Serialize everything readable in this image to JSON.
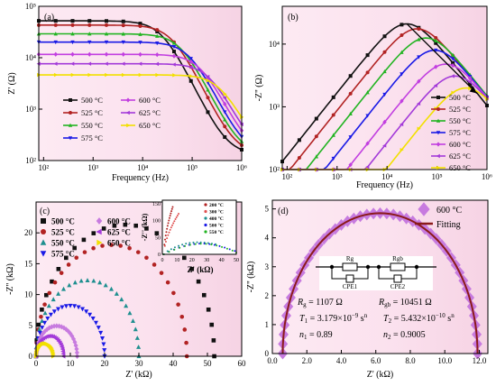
{
  "colors": {
    "bg_pink": "#fbe4ef",
    "s500": "#111111",
    "s525": "#b22323",
    "s550": "#22b422",
    "s575": "#1a1ae6",
    "s600": "#c23fe0",
    "s625": "#a33ad9",
    "s650": "#f2e000",
    "scatter550": "#1e8f8f",
    "scatter600": "#c77bdf",
    "fit": "#8b1a1a"
  },
  "chart_data": [
    {
      "type": "line",
      "panel_label": "(a)",
      "xlabel": "Frequency (Hz)",
      "ylabel": "Z' (Ω)",
      "x_scale": "log",
      "y_scale": "log",
      "xlim": [
        80,
        1000000
      ],
      "ylim": [
        100,
        100000
      ],
      "x_ticks": [
        100,
        1000,
        10000,
        100000,
        1000000
      ],
      "x_tick_labels": [
        "10²",
        "10³",
        "10⁴",
        "10⁵",
        "10⁶"
      ],
      "y_ticks": [
        100,
        1000,
        10000,
        100000
      ],
      "y_tick_labels": [
        "10²",
        "10³",
        "10⁴",
        "10⁵"
      ],
      "legend": [
        "500 °C",
        "525 °C",
        "550 °C",
        "575 °C",
        "600 °C",
        "625 °C",
        "650 °C"
      ],
      "series": [
        {
          "name": "500 °C",
          "plateau": 52000,
          "fc": 25000,
          "color_key": "s500"
        },
        {
          "name": "525 °C",
          "plateau": 43000,
          "fc": 40000,
          "color_key": "s525"
        },
        {
          "name": "550 °C",
          "plateau": 29000,
          "fc": 60000,
          "color_key": "s550"
        },
        {
          "name": "575 °C",
          "plateau": 20000,
          "fc": 90000,
          "color_key": "s575"
        },
        {
          "name": "600 °C",
          "plateau": 11500,
          "fc": 150000,
          "color_key": "s600"
        },
        {
          "name": "625 °C",
          "plateau": 7500,
          "fc": 230000,
          "color_key": "s625"
        },
        {
          "name": "650 °C",
          "plateau": 4500,
          "fc": 380000,
          "color_key": "s650"
        }
      ]
    },
    {
      "type": "line",
      "panel_label": "(b)",
      "xlabel": "Frequency (Hz)",
      "ylabel": "-Z'' (Ω)",
      "x_scale": "log",
      "y_scale": "log",
      "xlim": [
        80,
        1000000
      ],
      "ylim": [
        100,
        40000
      ],
      "x_ticks": [
        100,
        1000,
        10000,
        100000,
        1000000
      ],
      "x_tick_labels": [
        "10²",
        "10³",
        "10⁴",
        "10⁵",
        "10⁶"
      ],
      "y_ticks": [
        100,
        1000,
        10000
      ],
      "y_tick_labels": [
        "10²",
        "10³",
        "10⁴"
      ],
      "legend": [
        "500 °C",
        "525 °C",
        "550 °C",
        "575 °C",
        "600 °C",
        "625 °C",
        "650 °C"
      ],
      "series": [
        {
          "name": "500 °C",
          "peak": 21000,
          "fpeak": 25000
        },
        {
          "name": "525 °C",
          "peak": 17500,
          "fpeak": 40000
        },
        {
          "name": "550 °C",
          "peak": 12500,
          "fpeak": 60000
        },
        {
          "name": "575 °C",
          "peak": 8000,
          "fpeak": 90000
        },
        {
          "name": "600 °C",
          "peak": 4800,
          "fpeak": 150000
        },
        {
          "name": "625 °C",
          "peak": 3100,
          "fpeak": 230000
        },
        {
          "name": "650 °C",
          "peak": 2000,
          "fpeak": 380000
        }
      ]
    },
    {
      "type": "scatter",
      "panel_label": "(c)",
      "xlabel": "Z' (kΩ)",
      "ylabel": "-Z'' (kΩ)",
      "xlim": [
        0,
        60
      ],
      "ylim": [
        0,
        25
      ],
      "x_ticks": [
        0,
        10,
        20,
        30,
        40,
        50,
        60
      ],
      "y_ticks": [
        0,
        5,
        10,
        15,
        20
      ],
      "legend": [
        "500 °C",
        "525 °C",
        "550 °C",
        "575 °C",
        "600 °C",
        "625 °C",
        "650 °C"
      ],
      "series": [
        {
          "name": "500 °C",
          "diameter": 52,
          "marker": "square"
        },
        {
          "name": "525 °C",
          "diameter": 44,
          "marker": "circle"
        },
        {
          "name": "550 °C",
          "diameter": 30,
          "marker": "triangle"
        },
        {
          "name": "575 °C",
          "diameter": 20,
          "marker": "triangle-down"
        },
        {
          "name": "600 °C",
          "diameter": 12,
          "marker": "diamond"
        },
        {
          "name": "625 °C",
          "diameter": 8,
          "marker": "triangle-left"
        },
        {
          "name": "650 °C",
          "diameter": 5,
          "marker": "triangle-right"
        }
      ],
      "inset": {
        "xlabel": "Z' (kΩ)",
        "ylabel": "-Z'' (kΩ)",
        "xlim": [
          0,
          50
        ],
        "ylim": [
          0,
          160
        ],
        "x_ticks": [
          0,
          10,
          20,
          30,
          40,
          50
        ],
        "y_ticks": [
          0,
          50,
          100,
          150
        ],
        "legend": [
          "200 °C",
          "300 °C",
          "400 °C",
          "500 °C",
          "550 °C"
        ]
      }
    },
    {
      "type": "scatter",
      "panel_label": "(d)",
      "xlabel": "Z' (kΩ)",
      "ylabel": "-Z'' (kΩ)",
      "xlim": [
        0,
        12.5
      ],
      "ylim": [
        0,
        5.3
      ],
      "x_ticks": [
        0,
        2,
        4,
        6,
        8,
        10,
        12
      ],
      "x_tick_labels": [
        "0.0",
        "2.0",
        "4.0",
        "6.0",
        "8.0",
        "10.0",
        "12.0"
      ],
      "y_ticks": [
        0,
        1,
        2,
        3,
        4,
        5
      ],
      "legend": [
        "600 °C",
        "Fitting"
      ],
      "measured": {
        "x_start": 0.6,
        "x_end": 11.9,
        "peak": 4.85
      },
      "circuit": {
        "labels": [
          "Rg",
          "CPE1",
          "Rgb",
          "CPE2"
        ]
      },
      "params": {
        "Rg": "R",
        "Rg_sub": "g",
        "Rg_val": " = 1107 Ω",
        "Rgb": "R",
        "Rgb_sub": "gb",
        "Rgb_val": " = 10451 Ω",
        "T1": "T",
        "T1_sub": "1",
        "T1_val": " = 3.179×10",
        "T1_exp": "−9",
        "T1_unit": " s",
        "T1_unit_exp": "n",
        "T2": "T",
        "T2_sub": "2",
        "T2_val": " = 5.432×10",
        "T2_exp": "−10",
        "T2_unit": " s",
        "T2_unit_exp": "n",
        "n1": "n",
        "n1_sub": "1",
        "n1_val": " = 0.89",
        "n2": "n",
        "n2_sub": "2",
        "n2_val": " = 0.9005"
      }
    }
  ]
}
